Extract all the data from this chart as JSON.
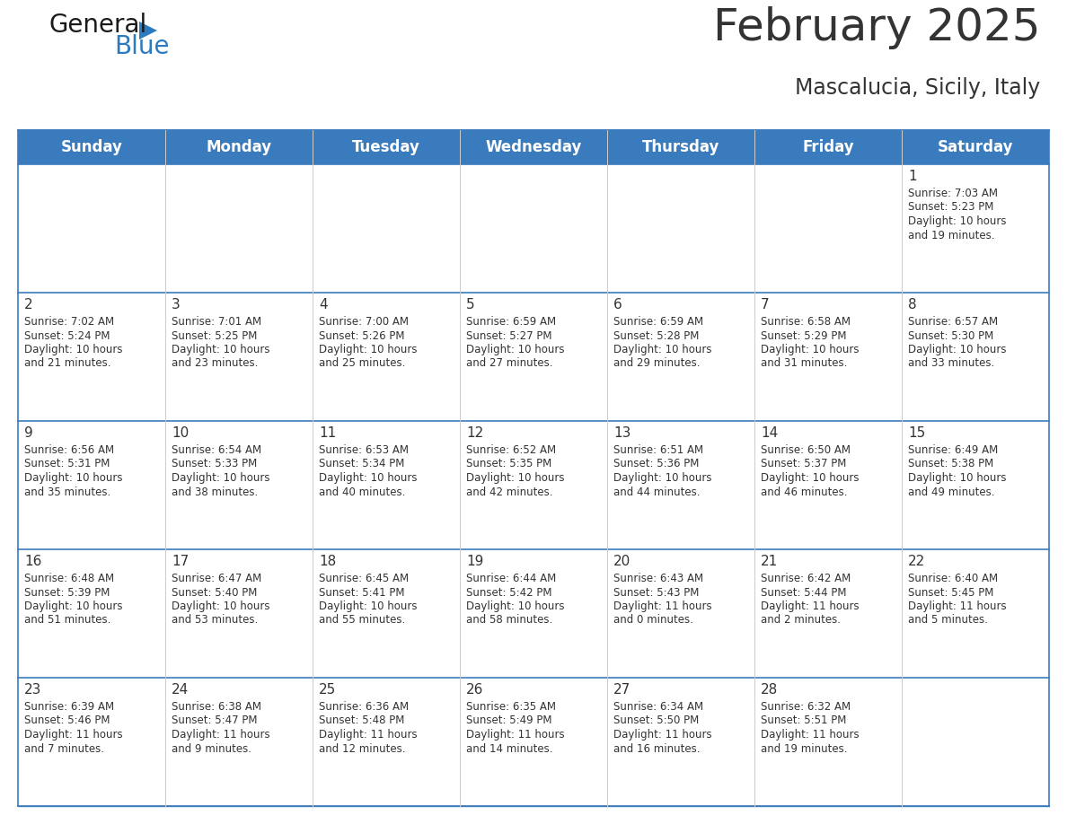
{
  "title": "February 2025",
  "subtitle": "Mascalucia, Sicily, Italy",
  "header_bg": "#3A7BBD",
  "header_text_color": "#FFFFFF",
  "cell_bg_white": "#FFFFFF",
  "cell_bg_gray": "#F2F6FA",
  "border_color": "#3A7BBD",
  "divider_color": "#3A7BBD",
  "vert_line_color": "#CCCCCC",
  "text_color": "#333333",
  "days_of_week": [
    "Sunday",
    "Monday",
    "Tuesday",
    "Wednesday",
    "Thursday",
    "Friday",
    "Saturday"
  ],
  "logo_text1": "General",
  "logo_text2": "Blue",
  "logo_color1": "#1A1A1A",
  "logo_color2": "#2A7BC0",
  "title_fontsize": 36,
  "subtitle_fontsize": 17,
  "header_fontsize": 12,
  "day_num_fontsize": 11,
  "cell_fontsize": 8.5,
  "weeks": [
    [
      {
        "day": null,
        "sunrise": null,
        "sunset": null,
        "daylight": null
      },
      {
        "day": null,
        "sunrise": null,
        "sunset": null,
        "daylight": null
      },
      {
        "day": null,
        "sunrise": null,
        "sunset": null,
        "daylight": null
      },
      {
        "day": null,
        "sunrise": null,
        "sunset": null,
        "daylight": null
      },
      {
        "day": null,
        "sunrise": null,
        "sunset": null,
        "daylight": null
      },
      {
        "day": null,
        "sunrise": null,
        "sunset": null,
        "daylight": null
      },
      {
        "day": 1,
        "sunrise": "7:03 AM",
        "sunset": "5:23 PM",
        "daylight": "10 hours\nand 19 minutes."
      }
    ],
    [
      {
        "day": 2,
        "sunrise": "7:02 AM",
        "sunset": "5:24 PM",
        "daylight": "10 hours\nand 21 minutes."
      },
      {
        "day": 3,
        "sunrise": "7:01 AM",
        "sunset": "5:25 PM",
        "daylight": "10 hours\nand 23 minutes."
      },
      {
        "day": 4,
        "sunrise": "7:00 AM",
        "sunset": "5:26 PM",
        "daylight": "10 hours\nand 25 minutes."
      },
      {
        "day": 5,
        "sunrise": "6:59 AM",
        "sunset": "5:27 PM",
        "daylight": "10 hours\nand 27 minutes."
      },
      {
        "day": 6,
        "sunrise": "6:59 AM",
        "sunset": "5:28 PM",
        "daylight": "10 hours\nand 29 minutes."
      },
      {
        "day": 7,
        "sunrise": "6:58 AM",
        "sunset": "5:29 PM",
        "daylight": "10 hours\nand 31 minutes."
      },
      {
        "day": 8,
        "sunrise": "6:57 AM",
        "sunset": "5:30 PM",
        "daylight": "10 hours\nand 33 minutes."
      }
    ],
    [
      {
        "day": 9,
        "sunrise": "6:56 AM",
        "sunset": "5:31 PM",
        "daylight": "10 hours\nand 35 minutes."
      },
      {
        "day": 10,
        "sunrise": "6:54 AM",
        "sunset": "5:33 PM",
        "daylight": "10 hours\nand 38 minutes."
      },
      {
        "day": 11,
        "sunrise": "6:53 AM",
        "sunset": "5:34 PM",
        "daylight": "10 hours\nand 40 minutes."
      },
      {
        "day": 12,
        "sunrise": "6:52 AM",
        "sunset": "5:35 PM",
        "daylight": "10 hours\nand 42 minutes."
      },
      {
        "day": 13,
        "sunrise": "6:51 AM",
        "sunset": "5:36 PM",
        "daylight": "10 hours\nand 44 minutes."
      },
      {
        "day": 14,
        "sunrise": "6:50 AM",
        "sunset": "5:37 PM",
        "daylight": "10 hours\nand 46 minutes."
      },
      {
        "day": 15,
        "sunrise": "6:49 AM",
        "sunset": "5:38 PM",
        "daylight": "10 hours\nand 49 minutes."
      }
    ],
    [
      {
        "day": 16,
        "sunrise": "6:48 AM",
        "sunset": "5:39 PM",
        "daylight": "10 hours\nand 51 minutes."
      },
      {
        "day": 17,
        "sunrise": "6:47 AM",
        "sunset": "5:40 PM",
        "daylight": "10 hours\nand 53 minutes."
      },
      {
        "day": 18,
        "sunrise": "6:45 AM",
        "sunset": "5:41 PM",
        "daylight": "10 hours\nand 55 minutes."
      },
      {
        "day": 19,
        "sunrise": "6:44 AM",
        "sunset": "5:42 PM",
        "daylight": "10 hours\nand 58 minutes."
      },
      {
        "day": 20,
        "sunrise": "6:43 AM",
        "sunset": "5:43 PM",
        "daylight": "11 hours\nand 0 minutes."
      },
      {
        "day": 21,
        "sunrise": "6:42 AM",
        "sunset": "5:44 PM",
        "daylight": "11 hours\nand 2 minutes."
      },
      {
        "day": 22,
        "sunrise": "6:40 AM",
        "sunset": "5:45 PM",
        "daylight": "11 hours\nand 5 minutes."
      }
    ],
    [
      {
        "day": 23,
        "sunrise": "6:39 AM",
        "sunset": "5:46 PM",
        "daylight": "11 hours\nand 7 minutes."
      },
      {
        "day": 24,
        "sunrise": "6:38 AM",
        "sunset": "5:47 PM",
        "daylight": "11 hours\nand 9 minutes."
      },
      {
        "day": 25,
        "sunrise": "6:36 AM",
        "sunset": "5:48 PM",
        "daylight": "11 hours\nand 12 minutes."
      },
      {
        "day": 26,
        "sunrise": "6:35 AM",
        "sunset": "5:49 PM",
        "daylight": "11 hours\nand 14 minutes."
      },
      {
        "day": 27,
        "sunrise": "6:34 AM",
        "sunset": "5:50 PM",
        "daylight": "11 hours\nand 16 minutes."
      },
      {
        "day": 28,
        "sunrise": "6:32 AM",
        "sunset": "5:51 PM",
        "daylight": "11 hours\nand 19 minutes."
      },
      {
        "day": null,
        "sunrise": null,
        "sunset": null,
        "daylight": null
      }
    ]
  ]
}
